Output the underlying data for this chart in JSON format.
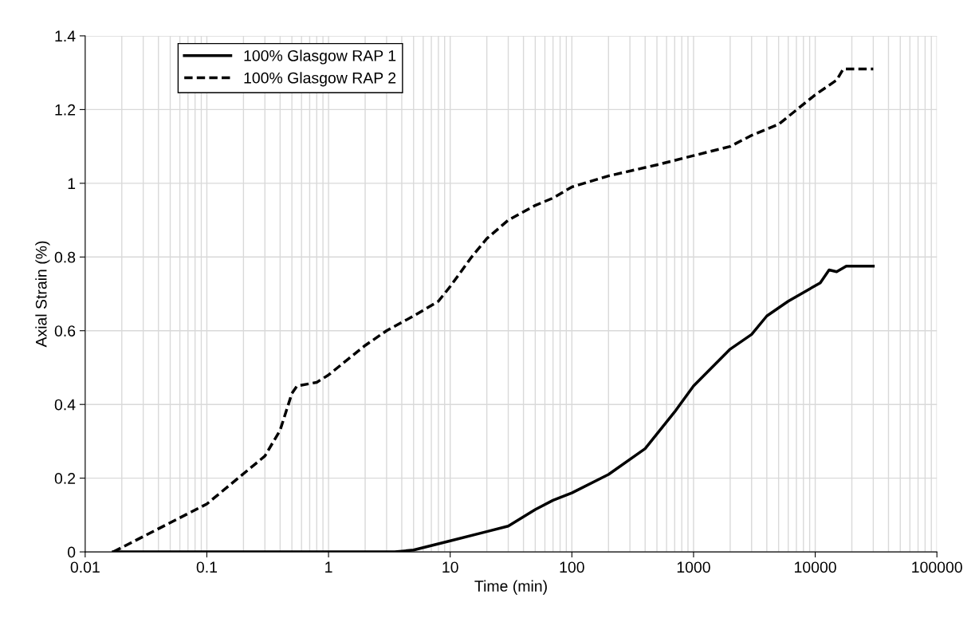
{
  "chart_data": {
    "type": "line",
    "xlabel": "Time (min)",
    "ylabel": "Axial Strain (%)",
    "log": "x",
    "xlim": [
      0.01,
      100000
    ],
    "xticks": [
      0.01,
      0.1,
      1,
      10,
      100,
      1000,
      10000,
      100000
    ],
    "ylim": [
      0,
      1.4
    ],
    "yticks": [
      0,
      0.2,
      0.4,
      0.6,
      0.8,
      1,
      1.2,
      1.4
    ],
    "grid": true,
    "legend": "top left",
    "marker": "none",
    "series": [
      {
        "name": "100% Glasgow RAP 1",
        "color": "#000000",
        "line_style": "solid",
        "x": [
          0.017,
          0.1,
          1,
          3,
          3.5,
          5,
          10,
          20,
          30,
          50,
          70,
          100,
          200,
          400,
          700,
          1000,
          2000,
          3000,
          4000,
          6000,
          11000,
          13000,
          15000,
          18000,
          30000
        ],
        "values": [
          0,
          0,
          0,
          0,
          0,
          0.005,
          0.03,
          0.055,
          0.07,
          0.115,
          0.14,
          0.16,
          0.21,
          0.28,
          0.38,
          0.45,
          0.55,
          0.59,
          0.64,
          0.68,
          0.73,
          0.765,
          0.76,
          0.775,
          0.775
        ]
      },
      {
        "name": "100% Glasgow RAP 2",
        "color": "#000000",
        "line_style": "dashed",
        "x": [
          0.017,
          0.1,
          0.3,
          0.4,
          0.5,
          0.55,
          0.8,
          1,
          2,
          3,
          5,
          8,
          10,
          15,
          20,
          30,
          50,
          70,
          100,
          200,
          500,
          1000,
          2000,
          3000,
          5000,
          10000,
          15000,
          17000,
          30000
        ],
        "values": [
          0,
          0.13,
          0.26,
          0.33,
          0.43,
          0.45,
          0.46,
          0.48,
          0.56,
          0.6,
          0.64,
          0.68,
          0.72,
          0.8,
          0.85,
          0.9,
          0.94,
          0.96,
          0.99,
          1.02,
          1.05,
          1.075,
          1.1,
          1.13,
          1.16,
          1.24,
          1.28,
          1.31,
          1.31
        ]
      }
    ]
  }
}
